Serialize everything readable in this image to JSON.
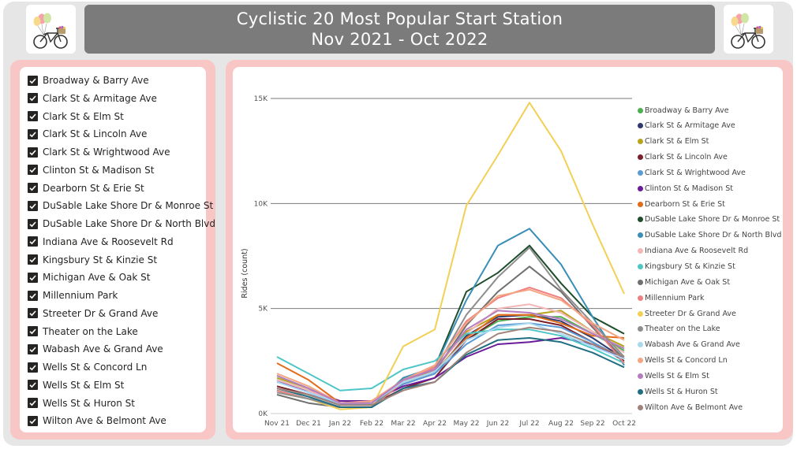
{
  "title": {
    "line1": "Cyclistic 20 Most Popular Start Station",
    "line2": "Nov 2021 - Oct 2022"
  },
  "logo": {
    "icon": "bicycle-with-balloons-icon"
  },
  "colors": {
    "panel_pink": "#f9c6c6",
    "title_bg": "#7b7b7b",
    "frame_bg": "#e6e6e6"
  },
  "slicer": {
    "items": [
      {
        "label": "Broadway & Barry Ave",
        "checked": true
      },
      {
        "label": "Clark St & Armitage Ave",
        "checked": true
      },
      {
        "label": "Clark St & Elm St",
        "checked": true
      },
      {
        "label": "Clark St & Lincoln Ave",
        "checked": true
      },
      {
        "label": "Clark St & Wrightwood Ave",
        "checked": true
      },
      {
        "label": "Clinton St & Madison St",
        "checked": true
      },
      {
        "label": "Dearborn St & Erie St",
        "checked": true
      },
      {
        "label": "DuSable Lake Shore Dr & Monroe St",
        "checked": true
      },
      {
        "label": "DuSable Lake Shore Dr & North Blvd",
        "checked": true
      },
      {
        "label": "Indiana Ave & Roosevelt Rd",
        "checked": true
      },
      {
        "label": "Kingsbury St & Kinzie St",
        "checked": true
      },
      {
        "label": "Michigan Ave & Oak St",
        "checked": true
      },
      {
        "label": "Millennium Park",
        "checked": true
      },
      {
        "label": "Streeter Dr & Grand Ave",
        "checked": true
      },
      {
        "label": "Theater on the Lake",
        "checked": true
      },
      {
        "label": "Wabash Ave & Grand Ave",
        "checked": true
      },
      {
        "label": "Wells St & Concord Ln",
        "checked": true
      },
      {
        "label": "Wells St & Elm St",
        "checked": true
      },
      {
        "label": "Wells St & Huron St",
        "checked": true
      },
      {
        "label": "Wilton Ave & Belmont Ave",
        "checked": true
      }
    ]
  },
  "chart_data": {
    "type": "line",
    "title": "",
    "xlabel": "",
    "ylabel": "Rides (count)",
    "ylim": [
      0,
      15000
    ],
    "yticks": [
      0,
      5000,
      10000,
      15000
    ],
    "ytick_labels": [
      "0K",
      "5K",
      "10K",
      "15K"
    ],
    "grid": true,
    "legend": "right",
    "categories": [
      "Nov 21",
      "Dec 21",
      "Jan 22",
      "Feb 22",
      "Mar 22",
      "Apr 22",
      "May 22",
      "Jun 22",
      "Jul 22",
      "Aug 22",
      "Sep 22",
      "Oct 22"
    ],
    "series": [
      {
        "name": "Broadway & Barry Ave",
        "color": "#4caf50",
        "values": [
          1800,
          1200,
          500,
          600,
          1500,
          2000,
          3500,
          4400,
          4600,
          4600,
          3800,
          3000
        ]
      },
      {
        "name": "Clark St & Armitage Ave",
        "color": "#2e3a6e",
        "values": [
          1600,
          1100,
          500,
          500,
          1400,
          1900,
          3700,
          4600,
          4700,
          4400,
          3600,
          2600
        ]
      },
      {
        "name": "Clark St & Elm St",
        "color": "#b8a31d",
        "values": [
          1700,
          1200,
          500,
          600,
          1500,
          2100,
          3900,
          4700,
          4700,
          4900,
          3900,
          3200
        ]
      },
      {
        "name": "Clark St & Lincoln Ave",
        "color": "#7b1f2b",
        "values": [
          1300,
          900,
          400,
          400,
          1200,
          1700,
          3500,
          4500,
          4500,
          4200,
          3400,
          2500
        ]
      },
      {
        "name": "Clark St & Wrightwood Ave",
        "color": "#5b9bd5",
        "values": [
          1600,
          1000,
          400,
          500,
          1400,
          1900,
          3300,
          4200,
          4300,
          4100,
          3400,
          2600
        ]
      },
      {
        "name": "Clinton St & Madison St",
        "color": "#6a1b9a",
        "values": [
          1500,
          1100,
          600,
          600,
          1300,
          1700,
          2700,
          3300,
          3400,
          3600,
          3300,
          2600
        ]
      },
      {
        "name": "Dearborn St & Erie St",
        "color": "#e36c1a",
        "values": [
          2400,
          1600,
          500,
          500,
          1600,
          2000,
          3600,
          4700,
          4700,
          4300,
          3700,
          3600
        ]
      },
      {
        "name": "DuSable Lake Shore Dr & Monroe St",
        "color": "#1e4d2b",
        "values": [
          1100,
          700,
          300,
          300,
          1700,
          2200,
          5800,
          6700,
          8000,
          6200,
          4600,
          3800
        ]
      },
      {
        "name": "DuSable Lake Shore Dr & North Blvd",
        "color": "#3a8fb7",
        "values": [
          1100,
          700,
          300,
          300,
          1700,
          2200,
          5400,
          8000,
          8800,
          7100,
          4600,
          2300
        ]
      },
      {
        "name": "Indiana Ave & Roosevelt Rd",
        "color": "#f4b6b6",
        "values": [
          1600,
          1100,
          500,
          500,
          1600,
          2200,
          3800,
          5000,
          5200,
          4800,
          3900,
          2900
        ]
      },
      {
        "name": "Kingsbury St & Kinzie St",
        "color": "#4fc6c6",
        "values": [
          2700,
          1900,
          1100,
          1200,
          2100,
          2500,
          3800,
          4000,
          4000,
          3700,
          3100,
          2400
        ]
      },
      {
        "name": "Michigan Ave & Oak St",
        "color": "#707070",
        "values": [
          900,
          500,
          300,
          300,
          1500,
          2000,
          4200,
          5800,
          7000,
          5800,
          4100,
          2600
        ]
      },
      {
        "name": "Millennium Park",
        "color": "#f08080",
        "values": [
          1100,
          700,
          300,
          300,
          1500,
          2200,
          4400,
          5500,
          6000,
          5500,
          4200,
          2400
        ]
      },
      {
        "name": "Streeter Dr & Grand Ave",
        "color": "#f2d055",
        "values": [
          1000,
          700,
          200,
          300,
          3200,
          4000,
          9900,
          12300,
          14800,
          12500,
          9000,
          5700
        ]
      },
      {
        "name": "Theater on the Lake",
        "color": "#8e8e8e",
        "values": [
          1000,
          700,
          300,
          300,
          1600,
          2100,
          4700,
          6500,
          7900,
          5900,
          4300,
          2700
        ]
      },
      {
        "name": "Wabash Ave & Grand Ave",
        "color": "#a9d8f0",
        "values": [
          1500,
          1000,
          500,
          500,
          1500,
          2000,
          3500,
          4100,
          4300,
          3800,
          3200,
          2600
        ]
      },
      {
        "name": "Wells St & Concord Ln",
        "color": "#f4a582",
        "values": [
          1900,
          1300,
          500,
          600,
          1600,
          2300,
          4300,
          5600,
          5900,
          5400,
          4300,
          3500
        ]
      },
      {
        "name": "Wells St & Elm St",
        "color": "#b57dbf",
        "values": [
          1800,
          1200,
          500,
          500,
          1600,
          2100,
          4000,
          4900,
          4800,
          4500,
          3800,
          3100
        ]
      },
      {
        "name": "Wells St & Huron St",
        "color": "#1f6e82",
        "values": [
          1200,
          800,
          300,
          300,
          1200,
          1500,
          2800,
          3500,
          3600,
          3400,
          2900,
          2200
        ]
      },
      {
        "name": "Wilton Ave & Belmont Ave",
        "color": "#a0837a",
        "values": [
          1200,
          900,
          400,
          400,
          1100,
          1500,
          2900,
          3800,
          4100,
          3900,
          3300,
          2700
        ]
      }
    ]
  }
}
